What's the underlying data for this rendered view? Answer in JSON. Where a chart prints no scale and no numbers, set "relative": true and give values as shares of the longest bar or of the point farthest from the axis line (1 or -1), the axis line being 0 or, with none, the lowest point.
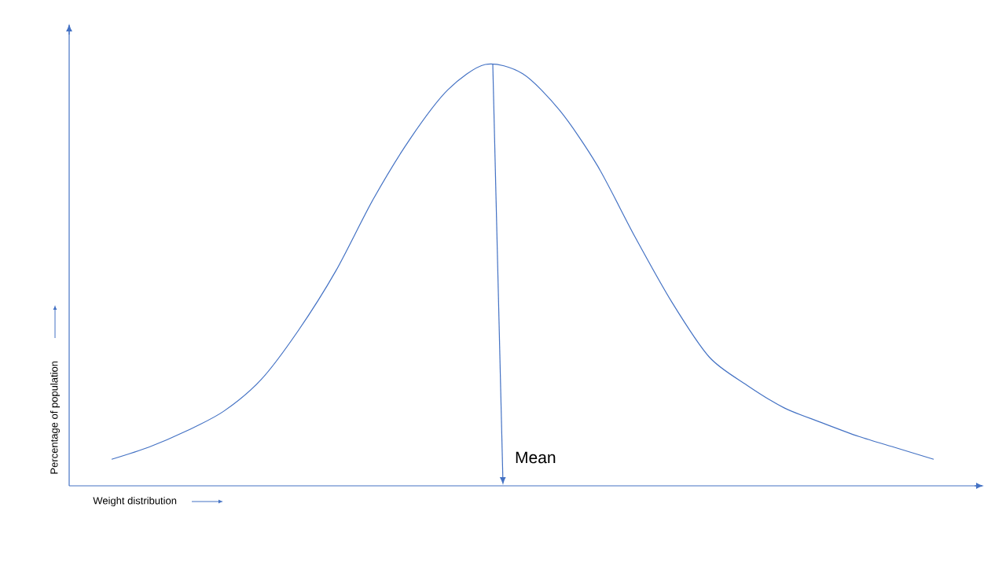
{
  "chart_data": {
    "type": "line",
    "relative": true,
    "xlabel": "Weight distribution",
    "ylabel": "Percentage of population",
    "annotations": [
      "Mean"
    ],
    "categories": [
      null,
      null,
      null,
      null,
      null,
      null,
      null,
      null,
      null,
      null,
      null,
      null,
      null,
      null,
      null,
      null,
      null,
      null,
      null,
      null,
      null,
      null,
      null
    ],
    "series": [
      {
        "color": "#4472c4",
        "values": [
          0.063,
          0.092,
          0.13,
          0.177,
          0.252,
          0.369,
          0.51,
          0.68,
          0.825,
          0.94,
          1.0,
          0.978,
          0.89,
          0.76,
          0.592,
          0.435,
          0.305,
          0.239,
          0.185,
          0.15,
          0.117,
          0.09,
          0.063
        ]
      }
    ]
  }
}
